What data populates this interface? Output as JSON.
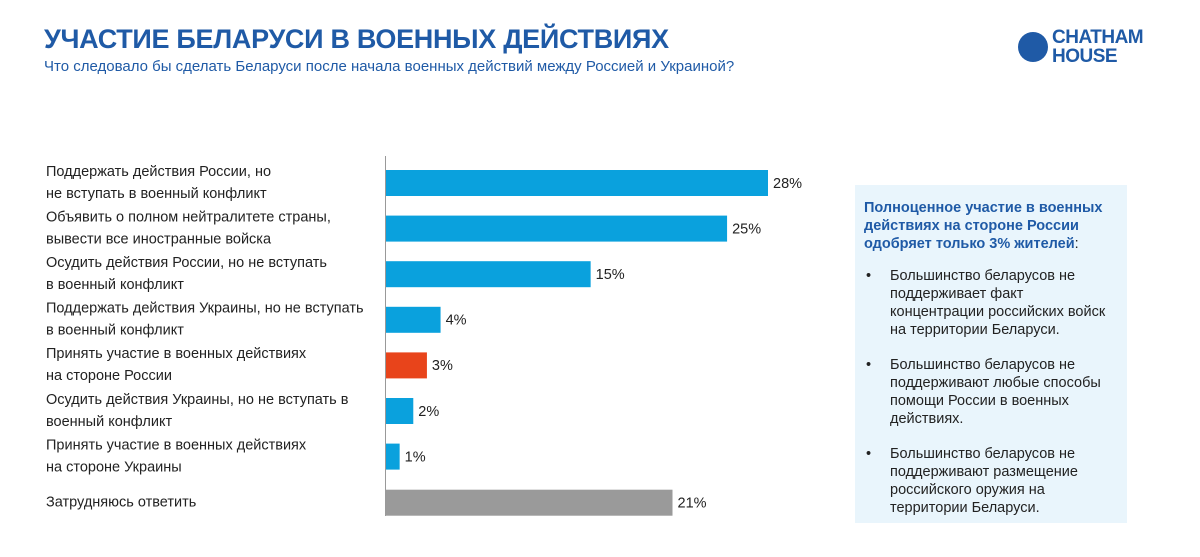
{
  "header": {
    "title": "УЧАСТИЕ БЕЛАРУСИ В ВОЕННЫХ ДЕЙСТВИЯХ",
    "subtitle": "Что следовало бы сделать Беларуси после начала военных действий между Россией и Украиной?",
    "logo": [
      "CHATHAM",
      "HOUSE"
    ]
  },
  "chart_data": {
    "type": "bar",
    "orientation": "horizontal",
    "categories": [
      [
        "Поддержать действия России, но",
        "не вступать в военный конфликт"
      ],
      [
        "Объявить о полном нейтралитете страны,",
        "вывести все иностранные войска"
      ],
      [
        "Осудить действия России, но не вступать",
        "в военный конфликт"
      ],
      [
        "Поддержать действия Украины, но не вступать",
        "в военный конфликт"
      ],
      [
        "Принять участие в военных действиях",
        "на стороне России"
      ],
      [
        "Осудить действия Украины, но не вступать в",
        "военный конфликт"
      ],
      [
        "Принять участие в военных действиях",
        "на стороне Украины"
      ],
      [
        "Затрудняюсь ответить"
      ]
    ],
    "values": [
      28,
      25,
      15,
      4,
      3,
      2,
      1,
      21
    ],
    "value_labels": [
      "28%",
      "25%",
      "15%",
      "4%",
      "3%",
      "2%",
      "1%",
      "21%"
    ],
    "colors": [
      "#0aa1dd",
      "#0aa1dd",
      "#0aa1dd",
      "#0aa1dd",
      "#e8441b",
      "#0aa1dd",
      "#0aa1dd",
      "#9a9a9a"
    ]
  },
  "note": {
    "title": "Полноценное участие в военных действиях на стороне России одобряет только 3% жителей",
    "title_suffix": ":",
    "bullets": [
      "Большинство беларусов не поддерживает факт концентрации российских войск на территории Беларуси.",
      "Большинство беларусов не поддерживают любые способы помощи России в военных действиях.",
      "Большинство беларусов не поддерживают размещение российского оружия на территории Беларуси."
    ]
  }
}
